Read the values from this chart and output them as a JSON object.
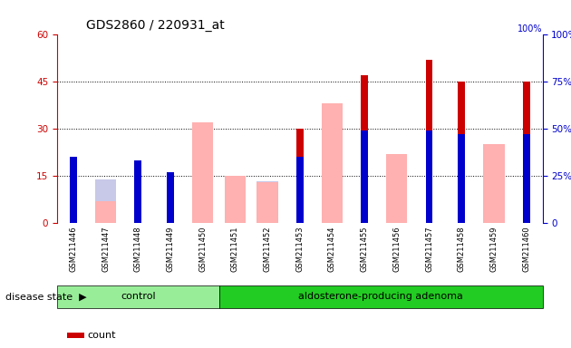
{
  "title": "GDS2860 / 220931_at",
  "samples": [
    "GSM211446",
    "GSM211447",
    "GSM211448",
    "GSM211449",
    "GSM211450",
    "GSM211451",
    "GSM211452",
    "GSM211453",
    "GSM211454",
    "GSM211455",
    "GSM211456",
    "GSM211457",
    "GSM211458",
    "GSM211459",
    "GSM211460"
  ],
  "count": [
    20,
    0,
    20,
    14,
    0,
    0,
    0,
    30,
    0,
    47,
    0,
    52,
    45,
    0,
    45
  ],
  "percentile_rank_pct": [
    35,
    0,
    33,
    27,
    0,
    0,
    0,
    35,
    0,
    49,
    0,
    49,
    47,
    0,
    47
  ],
  "value_absent": [
    0,
    7,
    0,
    0,
    32,
    15,
    13,
    0,
    38,
    0,
    22,
    0,
    0,
    25,
    0
  ],
  "rank_absent_pct": [
    0,
    23,
    0,
    0,
    44,
    23,
    22,
    0,
    44,
    0,
    35,
    0,
    0,
    27,
    0
  ],
  "n_control": 5,
  "n_adenoma": 10,
  "ylim_left": [
    0,
    60
  ],
  "ylim_right": [
    0,
    100
  ],
  "yticks_left": [
    0,
    15,
    30,
    45,
    60
  ],
  "yticks_right": [
    0,
    25,
    50,
    75,
    100
  ],
  "color_count": "#cc0000",
  "color_percentile": "#0000cc",
  "color_value_absent": "#ffb0b0",
  "color_rank_absent": "#c8c8e8",
  "bg_plot": "#d8d8d8",
  "color_control_bg": "#98ee98",
  "color_adenoma_bg": "#22cc22",
  "color_axis_left": "#cc0000",
  "color_axis_right": "#0000cc",
  "color_grid": "black",
  "label_fontsize": 7,
  "tick_fontsize": 7.5,
  "title_fontsize": 10
}
